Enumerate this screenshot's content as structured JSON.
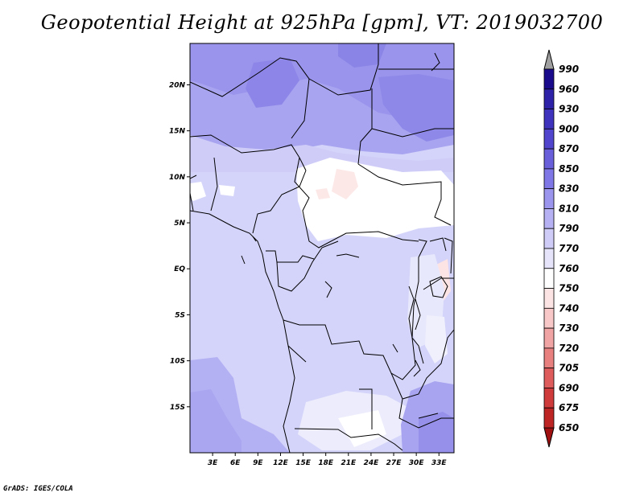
{
  "title": "Geopotential Height at 925hPa [gpm], VT: 2019032700",
  "credit": "GrADS: IGES/COLA",
  "map": {
    "lat_ticks": [
      {
        "lat": 20,
        "label": "20N"
      },
      {
        "lat": 15,
        "label": "15N"
      },
      {
        "lat": 10,
        "label": "10N"
      },
      {
        "lat": 5,
        "label": "5N"
      },
      {
        "lat": 0,
        "label": "EQ"
      },
      {
        "lat": -5,
        "label": "5S"
      },
      {
        "lat": -10,
        "label": "10S"
      },
      {
        "lat": -15,
        "label": "15S"
      }
    ],
    "lon_ticks": [
      {
        "lon": 3,
        "label": "3E"
      },
      {
        "lon": 6,
        "label": "6E"
      },
      {
        "lon": 9,
        "label": "9E"
      },
      {
        "lon": 12,
        "label": "12E"
      },
      {
        "lon": 15,
        "label": "15E"
      },
      {
        "lon": 18,
        "label": "18E"
      },
      {
        "lon": 21,
        "label": "21E"
      },
      {
        "lon": 24,
        "label": "24E"
      },
      {
        "lon": 27,
        "label": "27E"
      },
      {
        "lon": 30,
        "label": "30E"
      },
      {
        "lon": 33,
        "label": "33E"
      }
    ],
    "lon_range": [
      0,
      35
    ],
    "lat_range": [
      -20,
      24.5
    ]
  },
  "colorbar": {
    "levels": [
      "990",
      "960",
      "930",
      "900",
      "870",
      "850",
      "830",
      "810",
      "790",
      "770",
      "760",
      "750",
      "740",
      "730",
      "720",
      "705",
      "690",
      "675",
      "650"
    ],
    "colors": [
      "#1a0a8c",
      "#2e22a8",
      "#3f33bd",
      "#5045cc",
      "#6a5fdb",
      "#7f77e6",
      "#9c95ee",
      "#b6b1f3",
      "#cfccf8",
      "#e5e4fb",
      "#ffffff",
      "#fde4e4",
      "#f8c8c8",
      "#f0a4a4",
      "#e88080",
      "#de5c5c",
      "#cf3a3a",
      "#bd2424",
      "#a31414"
    ],
    "top_arrow_color": "#a0a0a0",
    "bottom_arrow_color": "#a01010"
  }
}
